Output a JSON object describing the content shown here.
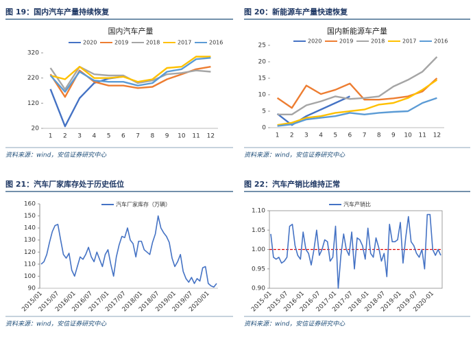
{
  "chart_data": [
    {
      "type": "line",
      "caption": "图 19：国内汽车产量持续恢复",
      "title": "国内汽车产量",
      "source": "资料来源：wind，安信证券研究中心",
      "categories": [
        "1",
        "2",
        "3",
        "4",
        "5",
        "6",
        "7",
        "8",
        "9",
        "10",
        "11",
        "12"
      ],
      "series": [
        {
          "name": "2020",
          "color": "#4472c4",
          "values": [
            176,
            28,
            140,
            200,
            218,
            226,
            null,
            null,
            null,
            null,
            null,
            null
          ]
        },
        {
          "name": "2019",
          "color": "#ed7d31",
          "values": [
            235,
            145,
            250,
            205,
            190,
            190,
            180,
            185,
            215,
            235,
            255,
            265
          ]
        },
        {
          "name": "2018",
          "color": "#a5a5a5",
          "values": [
            260,
            175,
            265,
            235,
            230,
            230,
            200,
            210,
            235,
            240,
            250,
            245
          ]
        },
        {
          "name": "2017",
          "color": "#ffc000",
          "values": [
            230,
            215,
            265,
            220,
            220,
            225,
            205,
            215,
            260,
            265,
            305,
            305
          ]
        },
        {
          "name": "2016",
          "color": "#5b9bd5",
          "values": [
            230,
            165,
            245,
            210,
            205,
            205,
            190,
            200,
            245,
            255,
            295,
            300
          ]
        }
      ],
      "ylim": [
        20,
        320
      ],
      "yticks": [
        20,
        120,
        220,
        320
      ]
    },
    {
      "type": "line",
      "caption": "图 20：新能源车产量快速恢复",
      "title": "国内新能源车产量",
      "source": "资料来源：wind，安信证券研究中心",
      "categories": [
        "1",
        "2",
        "3",
        "4",
        "5",
        "6",
        "7",
        "8",
        "9",
        "10",
        "11",
        "12"
      ],
      "series": [
        {
          "name": "2020",
          "color": "#4472c4",
          "values": [
            4.2,
            0.8,
            3.5,
            5.5,
            7.5,
            9.5,
            null,
            null,
            null,
            null,
            null,
            null
          ]
        },
        {
          "name": "2019",
          "color": "#ed7d31",
          "values": [
            9,
            6,
            12.8,
            10.2,
            11.5,
            13.4,
            8.5,
            8.5,
            8.9,
            9.5,
            11,
            15
          ]
        },
        {
          "name": "2018",
          "color": "#a5a5a5",
          "values": [
            4,
            4,
            6.8,
            8,
            9.5,
            8.7,
            9,
            9.5,
            12.5,
            14.5,
            17,
            21.5
          ]
        },
        {
          "name": "2017",
          "color": "#ffc000",
          "values": [
            0.8,
            1.5,
            3,
            3.5,
            4.5,
            5,
            5.5,
            7,
            7.5,
            9,
            11.5,
            14.5
          ]
        },
        {
          "name": "2016",
          "color": "#5b9bd5",
          "values": [
            0.5,
            1,
            2.5,
            3,
            3.5,
            4.5,
            4,
            4.5,
            4.8,
            5,
            7.5,
            9
          ]
        }
      ],
      "ylim": [
        0,
        25
      ],
      "yticks": [
        0,
        5,
        10,
        15,
        20,
        25
      ]
    },
    {
      "type": "line",
      "caption": "图 21：汽车厂家库存处于历史低位",
      "source": "资料来源：wind，安信证券研究中心",
      "categories": [
        "2015/01",
        null,
        null,
        null,
        null,
        null,
        "2015/07",
        null,
        null,
        null,
        null,
        null,
        "2016/01",
        null,
        null,
        null,
        null,
        null,
        "2016/07",
        null,
        null,
        null,
        null,
        null,
        "2017/01",
        null,
        null,
        null,
        null,
        null,
        "2017/07",
        null,
        null,
        null,
        null,
        null,
        "2018/01",
        null,
        null,
        null,
        null,
        null,
        "2018/07",
        null,
        null,
        null,
        null,
        null,
        "2019/01",
        null,
        null,
        null,
        null,
        null,
        "2019/07",
        null,
        null,
        null,
        null,
        null,
        "2020/01",
        null,
        null,
        null
      ],
      "series": [
        {
          "name": "汽车厂家库存（万辆）",
          "color": "#4472c4",
          "values": [
            110,
            112,
            118,
            128,
            137,
            142,
            143,
            130,
            118,
            115,
            119,
            105,
            100,
            108,
            116,
            114,
            118,
            124,
            116,
            112,
            120,
            114,
            108,
            118,
            122,
            110,
            100,
            116,
            126,
            133,
            132,
            140,
            130,
            127,
            116,
            129,
            129,
            122,
            120,
            118,
            128,
            135,
            150,
            140,
            136,
            133,
            128,
            115,
            108,
            112,
            118,
            104,
            98,
            95,
            99,
            94,
            98,
            96,
            107,
            108,
            94,
            92,
            91,
            94
          ]
        }
      ],
      "ylim": [
        90,
        160
      ],
      "yticks": [
        90,
        100,
        110,
        120,
        130,
        140,
        150,
        160
      ]
    },
    {
      "type": "line",
      "caption": "图 22：汽车产销比维持正常",
      "source": "资料来源：wind，安信证券研究中心",
      "categories": [
        "2015-01",
        null,
        null,
        null,
        null,
        null,
        "2015-07",
        null,
        null,
        null,
        null,
        null,
        "2016-01",
        null,
        null,
        null,
        null,
        null,
        "2016-07",
        null,
        null,
        null,
        null,
        null,
        "2017-01",
        null,
        null,
        null,
        null,
        null,
        "2017-07",
        null,
        null,
        null,
        null,
        null,
        "2018-01",
        null,
        null,
        null,
        null,
        null,
        "2018-07",
        null,
        null,
        null,
        null,
        null,
        "2019-01",
        null,
        null,
        null,
        null,
        null,
        "2019-07",
        null,
        null,
        null,
        null,
        null,
        "2020-01",
        null,
        null,
        null
      ],
      "series": [
        {
          "name": "汽车产销比",
          "color": "#4472c4",
          "values": [
            1.04,
            0.98,
            0.975,
            0.98,
            0.965,
            0.97,
            0.98,
            1.06,
            1.065,
            1.01,
            0.985,
            0.975,
            1.045,
            1.0,
            0.99,
            0.96,
            1.0,
            1.05,
            0.985,
            1.0,
            1.025,
            1.02,
            0.97,
            0.98,
            1.06,
            0.9,
            0.985,
            1.04,
            1.0,
            0.985,
            1.045,
            0.95,
            1.03,
            1.025,
            1.01,
            0.975,
            1.055,
            0.99,
            0.98,
            1.03,
            1.005,
            0.97,
            0.99,
            0.93,
            1.065,
            1.02,
            1.02,
            1.025,
            1.07,
            0.965,
            1.03,
            1.085,
            1.02,
            1.01,
            0.99,
            0.98,
            1.0,
            0.95,
            1.09,
            1.09,
            1.0,
            0.985,
            1.0,
            0.985
          ]
        }
      ],
      "reference_line": {
        "value": 1,
        "color": "#e00000"
      },
      "ylim": [
        0.9,
        1.1
      ],
      "yticks": [
        {
          "value": 0.9,
          "label": "0.90"
        },
        {
          "value": 0.95,
          "label": "0.95"
        },
        {
          "value": 1,
          "label": "1.00"
        },
        {
          "value": 1.05,
          "label": "1.05"
        },
        {
          "value": 1.1,
          "label": "1.10"
        }
      ]
    }
  ]
}
